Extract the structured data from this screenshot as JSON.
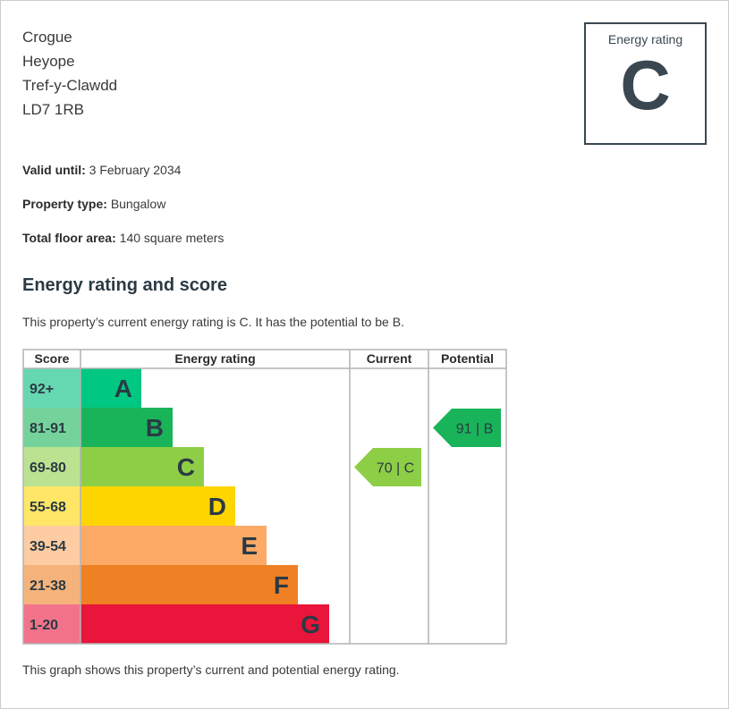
{
  "address": [
    "Crogue",
    "Heyope",
    "Tref-y-Clawdd",
    "LD7 1RB"
  ],
  "rating_box": {
    "caption": "Energy rating",
    "letter": "C"
  },
  "details": {
    "valid_until": {
      "label": "Valid until:",
      "value": "3 February 2034"
    },
    "property_type": {
      "label": "Property type:",
      "value": "Bungalow"
    },
    "floor_area": {
      "label": "Total floor area:",
      "value": "140 square meters"
    }
  },
  "section_title": "Energy rating and score",
  "description": "This property’s current energy rating is C. It has the potential to be B.",
  "footnote": "This graph shows this property’s current and potential energy rating.",
  "chart_data": {
    "type": "table",
    "headers": {
      "score": "Score",
      "rating": "Energy rating",
      "current": "Current",
      "potential": "Potential"
    },
    "bands": [
      {
        "letter": "A",
        "range": "92+",
        "color": "#00c781",
        "score_bg": "#66d8b1"
      },
      {
        "letter": "B",
        "range": "81-91",
        "color": "#19b459",
        "score_bg": "#75d29b"
      },
      {
        "letter": "C",
        "range": "69-80",
        "color": "#8dce46",
        "score_bg": "#bbe290"
      },
      {
        "letter": "D",
        "range": "55-68",
        "color": "#ffd500",
        "score_bg": "#ffe666"
      },
      {
        "letter": "E",
        "range": "39-54",
        "color": "#fcaa65",
        "score_bg": "#fdcca3"
      },
      {
        "letter": "F",
        "range": "21-38",
        "color": "#ef8023",
        "score_bg": "#f5b37b"
      },
      {
        "letter": "G",
        "range": "1-20",
        "color": "#e9153b",
        "score_bg": "#f27389"
      }
    ],
    "current": {
      "score": 70,
      "band": "C",
      "label": "70 | C",
      "color": "#8dce46"
    },
    "potential": {
      "score": 91,
      "band": "B",
      "label": "91 | B",
      "color": "#19b459"
    }
  }
}
